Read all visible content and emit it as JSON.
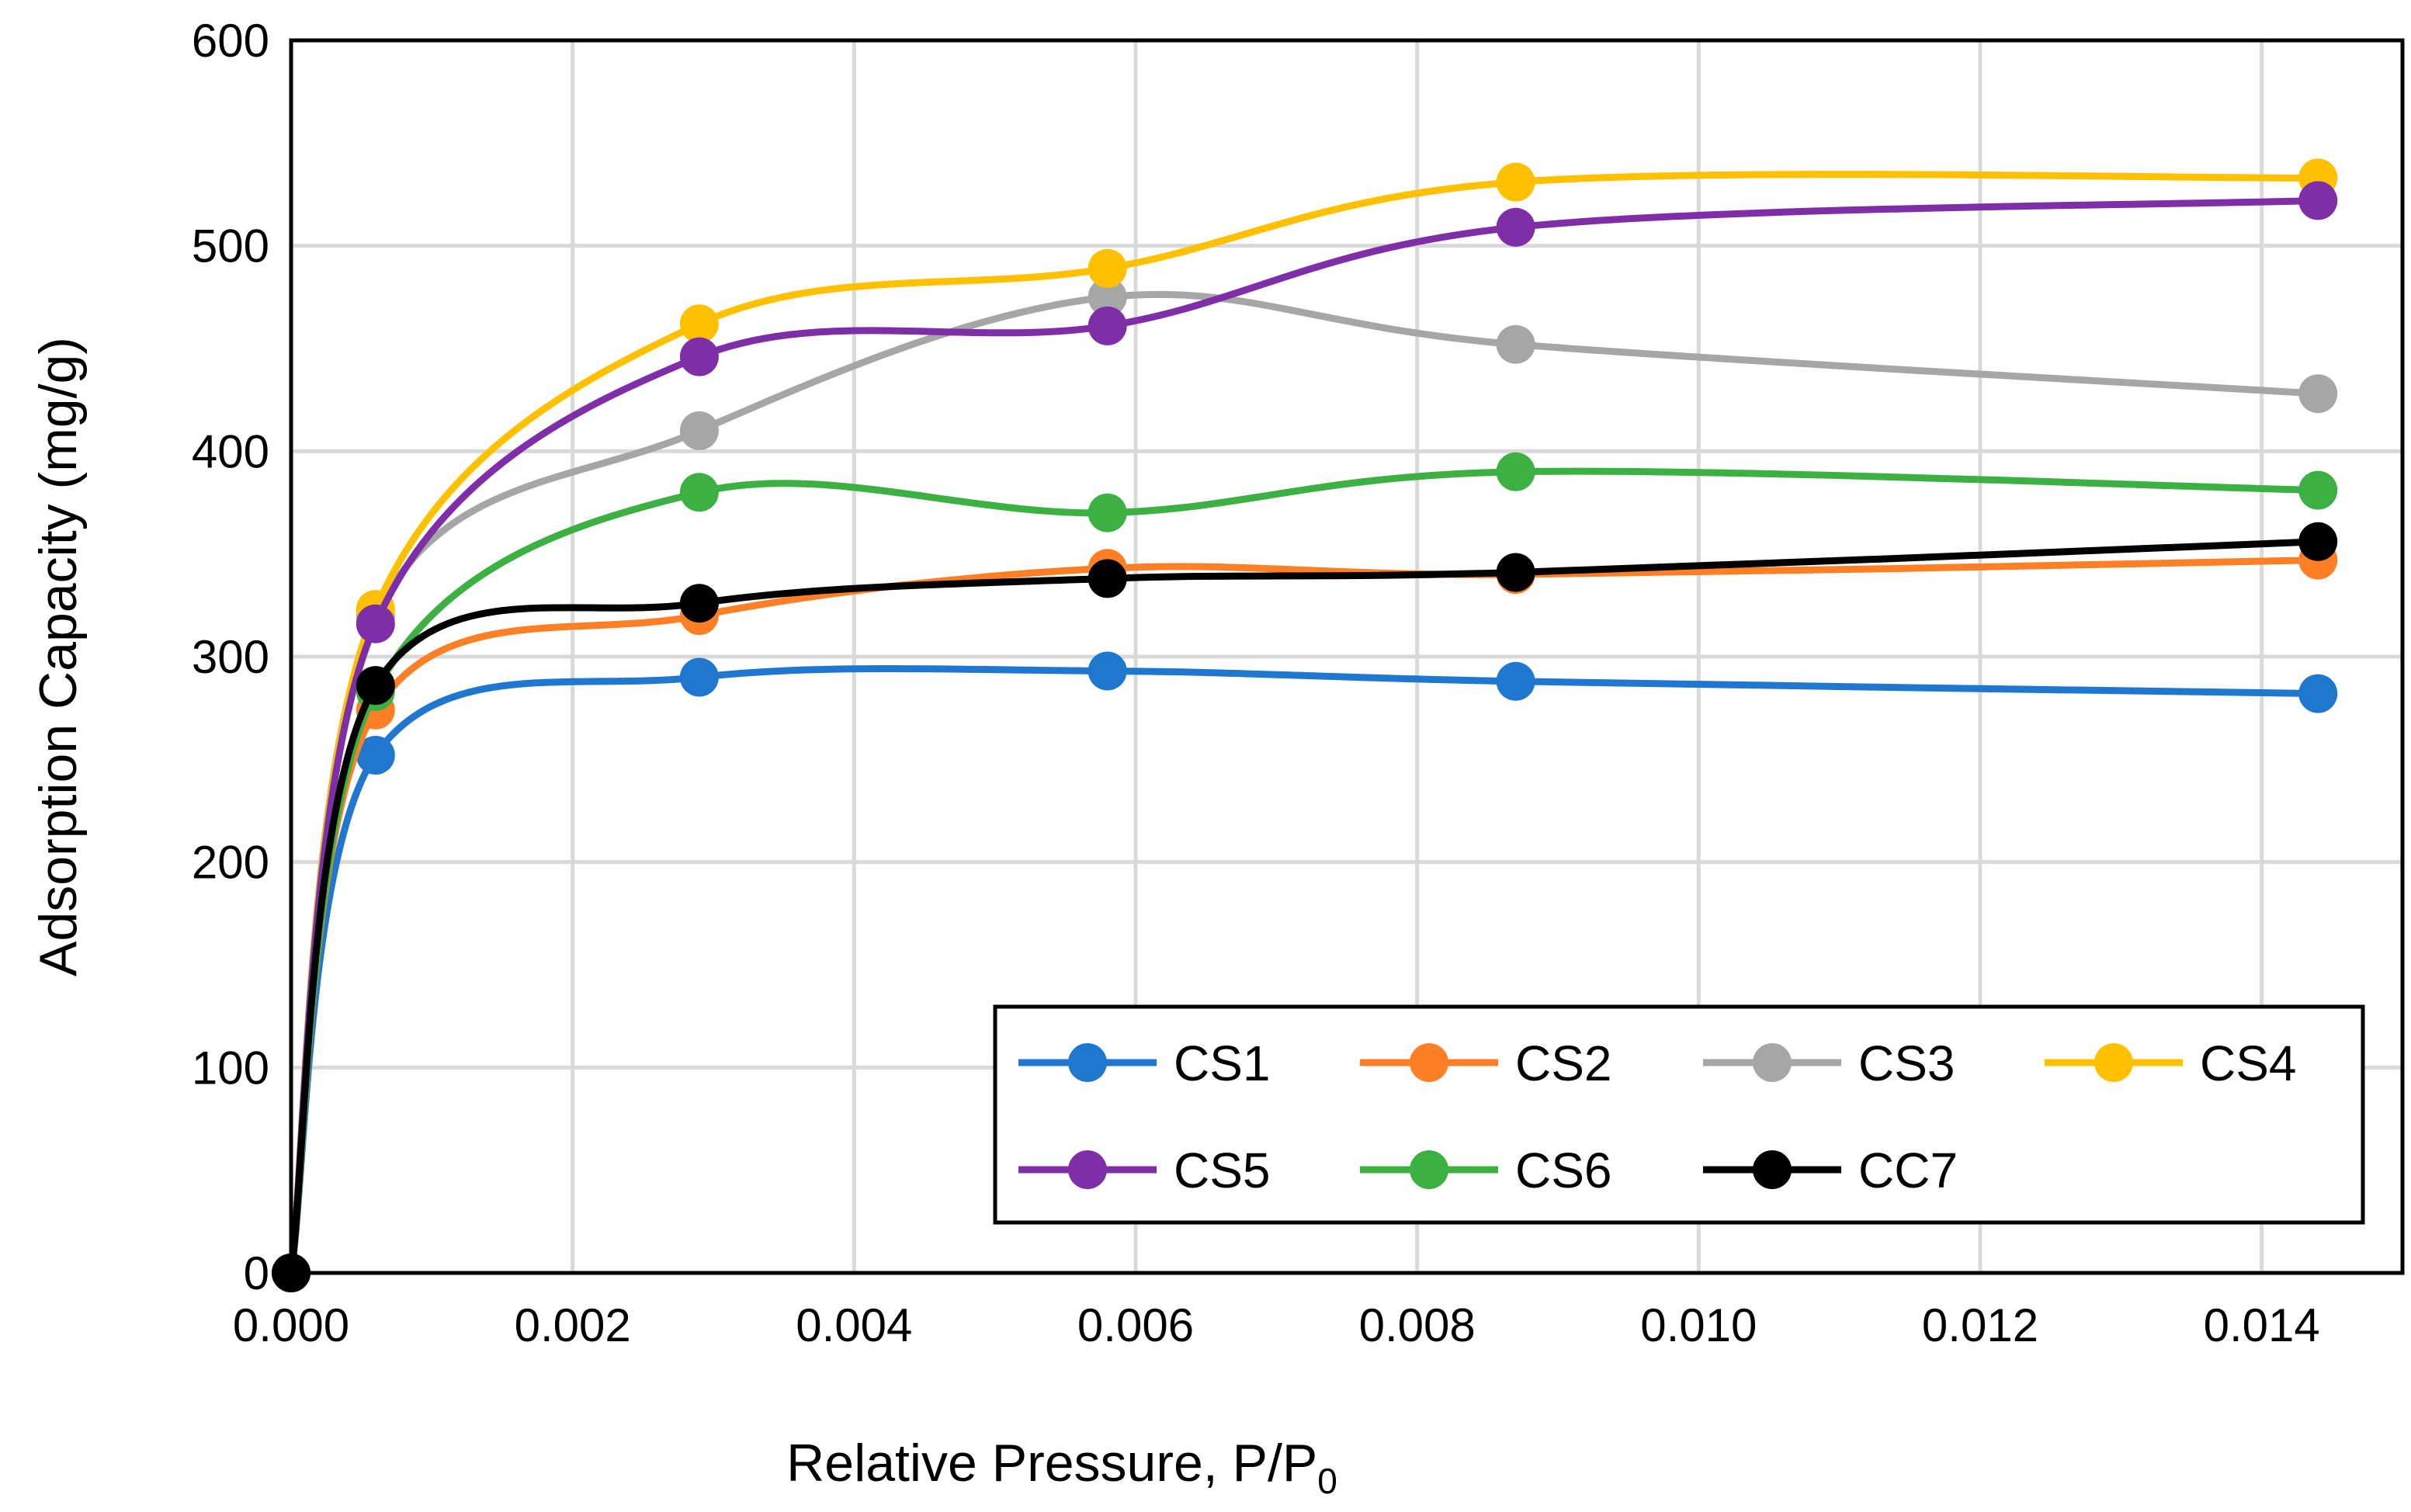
{
  "chart_data": {
    "type": "line",
    "title": "",
    "xlabel": "Relative Pressure, P/P",
    "xlabel_subscript": "0",
    "ylabel": "Adsorption Capacity (mg/g)",
    "xlim": [
      0,
      0.015
    ],
    "ylim": [
      0,
      600
    ],
    "x_ticks": [
      "0.000",
      "0.002",
      "0.004",
      "0.006",
      "0.008",
      "0.010",
      "0.012",
      "0.014"
    ],
    "y_ticks": [
      "0",
      "100",
      "200",
      "300",
      "400",
      "500",
      "600"
    ],
    "grid": true,
    "legend_position": "bottom-right",
    "x": [
      0,
      0.0006,
      0.0029,
      0.0058,
      0.0087,
      0.0144
    ],
    "series": [
      {
        "name": "CS1",
        "color": "#1f77d0",
        "values": [
          0,
          252,
          290,
          293,
          288,
          282
        ]
      },
      {
        "name": "CS2",
        "color": "#ff7f27",
        "values": [
          0,
          274,
          320,
          343,
          340,
          347
        ]
      },
      {
        "name": "CS3",
        "color": "#a6a6a6",
        "values": [
          0,
          320,
          410,
          475,
          452,
          428
        ]
      },
      {
        "name": "CS4",
        "color": "#ffc000",
        "values": [
          0,
          323,
          462,
          489,
          531,
          533
        ]
      },
      {
        "name": "CS5",
        "color": "#7e2fa8",
        "values": [
          0,
          316,
          446,
          461,
          509,
          522
        ]
      },
      {
        "name": "CS6",
        "color": "#3cb043",
        "values": [
          0,
          283,
          380,
          370,
          390,
          381
        ]
      },
      {
        "name": "CC7",
        "color": "#000000",
        "values": [
          0,
          286,
          326,
          338,
          341,
          356
        ]
      }
    ]
  }
}
